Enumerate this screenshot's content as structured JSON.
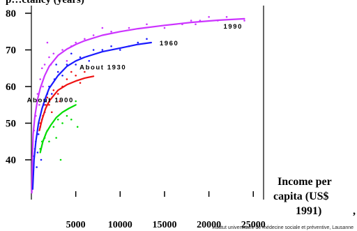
{
  "chart_data": {
    "type": "scatter",
    "title": "",
    "title_partial": "p…ctancy (years)",
    "xlabel_lines": [
      "Income per",
      "capita (US$",
      "1991)"
    ],
    "ylabel": "",
    "x_ticks": [
      "5000",
      "10000",
      "15000",
      "20000",
      "25000"
    ],
    "y_ticks": [
      "40",
      "50",
      "60",
      "70",
      "80"
    ],
    "xlim": [
      0,
      26000
    ],
    "ylim": [
      30,
      82
    ],
    "grid": false,
    "legend": "none",
    "credit": "Institut universitaire de médecine sociale et préventive, Lausanne",
    "series": [
      {
        "name": "1990",
        "color": "#cc33ff",
        "curve": [
          [
            50,
            31
          ],
          [
            100,
            40
          ],
          [
            200,
            47
          ],
          [
            400,
            52
          ],
          [
            700,
            56.5
          ],
          [
            1000,
            59.5
          ],
          [
            1500,
            63
          ],
          [
            2000,
            65.5
          ],
          [
            3000,
            68.5
          ],
          [
            4000,
            70.2
          ],
          [
            5000,
            71.5
          ],
          [
            6000,
            72.5
          ],
          [
            8000,
            74
          ],
          [
            10000,
            75
          ],
          [
            12000,
            75.8
          ],
          [
            15000,
            76.7
          ],
          [
            18000,
            77.5
          ],
          [
            21000,
            78.1
          ],
          [
            24000,
            78.5
          ]
        ],
        "points": [
          [
            300,
            48
          ],
          [
            500,
            52
          ],
          [
            700,
            58
          ],
          [
            1000,
            62
          ],
          [
            1200,
            65
          ],
          [
            1500,
            66
          ],
          [
            2000,
            68
          ],
          [
            2500,
            69
          ],
          [
            3000,
            64
          ],
          [
            3500,
            70
          ],
          [
            4000,
            67
          ],
          [
            4500,
            71
          ],
          [
            5000,
            72
          ],
          [
            6000,
            73
          ],
          [
            7000,
            74
          ],
          [
            8000,
            76
          ],
          [
            9000,
            75
          ],
          [
            11000,
            76
          ],
          [
            13000,
            77
          ],
          [
            15000,
            76
          ],
          [
            17000,
            77
          ],
          [
            18000,
            78
          ],
          [
            18500,
            77
          ],
          [
            19000,
            78
          ],
          [
            20000,
            79
          ],
          [
            21000,
            78
          ],
          [
            22000,
            79
          ],
          [
            24000,
            78
          ],
          [
            1800,
            72
          ],
          [
            2200,
            66
          ],
          [
            900,
            55
          ],
          [
            1300,
            60
          ]
        ]
      },
      {
        "name": "1960",
        "color": "#1a1aff",
        "curve": [
          [
            150,
            32
          ],
          [
            300,
            40
          ],
          [
            500,
            45
          ],
          [
            800,
            50
          ],
          [
            1200,
            54
          ],
          [
            1600,
            57
          ],
          [
            2000,
            59.5
          ],
          [
            3000,
            63
          ],
          [
            4000,
            65.5
          ],
          [
            5000,
            67
          ],
          [
            6000,
            68
          ],
          [
            8000,
            69.5
          ],
          [
            10000,
            70.5
          ],
          [
            12000,
            71.5
          ],
          [
            13500,
            72
          ]
        ],
        "points": [
          [
            200,
            36
          ],
          [
            300,
            41
          ],
          [
            400,
            43
          ],
          [
            500,
            45
          ],
          [
            600,
            38
          ],
          [
            800,
            47
          ],
          [
            1000,
            49
          ],
          [
            1200,
            51
          ],
          [
            1400,
            55
          ],
          [
            1600,
            56
          ],
          [
            1800,
            58
          ],
          [
            2000,
            60
          ],
          [
            2300,
            58
          ],
          [
            2600,
            62
          ],
          [
            3000,
            64
          ],
          [
            3500,
            63
          ],
          [
            4000,
            66
          ],
          [
            5000,
            66
          ],
          [
            5500,
            68
          ],
          [
            6500,
            67
          ],
          [
            7000,
            70
          ],
          [
            8000,
            70
          ],
          [
            9000,
            71
          ],
          [
            10000,
            70
          ],
          [
            11000,
            71
          ],
          [
            12000,
            72
          ],
          [
            13000,
            73
          ],
          [
            700,
            42
          ],
          [
            1100,
            40
          ],
          [
            1500,
            53
          ],
          [
            2800,
            66
          ],
          [
            4500,
            69
          ]
        ]
      },
      {
        "name": "About 1930",
        "color": "#ee1111",
        "curve": [
          [
            900,
            48
          ],
          [
            1200,
            51
          ],
          [
            1600,
            54
          ],
          [
            2000,
            56
          ],
          [
            2500,
            57.5
          ],
          [
            3000,
            59
          ],
          [
            4000,
            60.5
          ],
          [
            5000,
            61.5
          ],
          [
            6000,
            62.3
          ],
          [
            7000,
            62.8
          ]
        ],
        "points": [
          [
            1000,
            50
          ],
          [
            1300,
            52
          ],
          [
            1600,
            55
          ],
          [
            2000,
            55
          ],
          [
            2500,
            59
          ],
          [
            3000,
            58
          ],
          [
            3500,
            60
          ],
          [
            4000,
            62
          ],
          [
            4500,
            64
          ],
          [
            5000,
            63
          ],
          [
            5500,
            61
          ],
          [
            6000,
            64
          ],
          [
            1800,
            57
          ],
          [
            2300,
            53
          ],
          [
            3200,
            56
          ]
        ]
      },
      {
        "name": "About 1900",
        "color": "#00dd00",
        "curve": [
          [
            1000,
            42
          ],
          [
            1300,
            45
          ],
          [
            1700,
            47.5
          ],
          [
            2200,
            49.5
          ],
          [
            2800,
            51.5
          ],
          [
            3500,
            53
          ],
          [
            4200,
            54
          ],
          [
            5000,
            55
          ]
        ],
        "points": [
          [
            1000,
            43
          ],
          [
            1200,
            45
          ],
          [
            1500,
            46
          ],
          [
            1800,
            48
          ],
          [
            2000,
            45
          ],
          [
            2500,
            49
          ],
          [
            3000,
            51
          ],
          [
            3500,
            50
          ],
          [
            4000,
            52
          ],
          [
            4500,
            51
          ],
          [
            5000,
            56
          ],
          [
            5200,
            49
          ],
          [
            2800,
            46
          ],
          [
            3300,
            40
          ]
        ]
      }
    ]
  }
}
